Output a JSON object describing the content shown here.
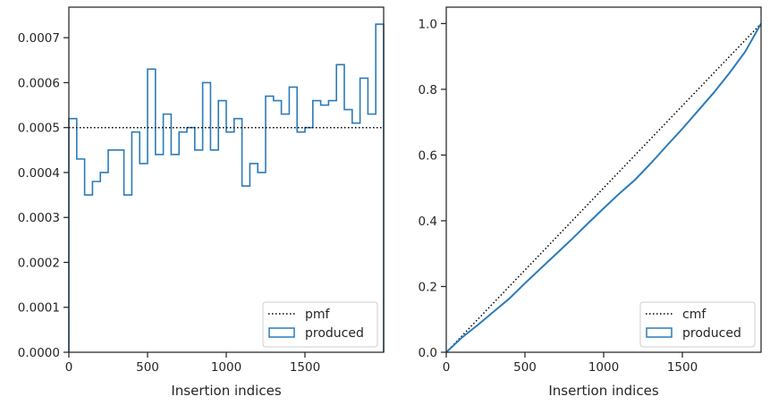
{
  "chart_data": [
    {
      "type": "histogram-step",
      "xlabel": "Insertion indices",
      "ylabel": "",
      "xlim": [
        0,
        2000
      ],
      "ylim": [
        0,
        0.000768
      ],
      "xticks": [
        0,
        500,
        1000,
        1500
      ],
      "xtick_labels": [
        "0",
        "500",
        "1000",
        "1500"
      ],
      "yticks": [
        0,
        0.0001,
        0.0002,
        0.0003,
        0.0004,
        0.0005,
        0.0006,
        0.0007
      ],
      "ytick_labels": [
        "0.0000",
        "0.0001",
        "0.0002",
        "0.0003",
        "0.0004",
        "0.0005",
        "0.0006",
        "0.0007"
      ],
      "bin_width": 50,
      "bin_edges_start": 0,
      "series": [
        {
          "name": "produced",
          "style": "step",
          "color": "#2b7bba",
          "values": [
            0.00052,
            0.00043,
            0.00035,
            0.00038,
            0.0004,
            0.00045,
            0.00045,
            0.00035,
            0.00049,
            0.00042,
            0.00063,
            0.00044,
            0.00053,
            0.00044,
            0.00049,
            0.0005,
            0.00045,
            0.0006,
            0.00045,
            0.00056,
            0.00049,
            0.00052,
            0.00037,
            0.00042,
            0.0004,
            0.00057,
            0.00056,
            0.00053,
            0.00059,
            0.00049,
            0.0005,
            0.00056,
            0.00055,
            0.00056,
            0.00064,
            0.00054,
            0.00051,
            0.00061,
            0.00053,
            0.00073
          ]
        },
        {
          "name": "pmf",
          "style": "dotted",
          "color": "#000000",
          "y": 0.0005
        }
      ],
      "legend": {
        "placement": "lower right",
        "entries": [
          {
            "label": "pmf",
            "style": "dotted"
          },
          {
            "label": "produced",
            "style": "patch"
          }
        ]
      }
    },
    {
      "type": "line",
      "xlabel": "Insertion indices",
      "ylabel": "",
      "xlim": [
        0,
        2000
      ],
      "ylim": [
        0,
        1.05
      ],
      "xticks": [
        0,
        500,
        1000,
        1500
      ],
      "xtick_labels": [
        "0",
        "500",
        "1000",
        "1500"
      ],
      "yticks": [
        0,
        0.2,
        0.4,
        0.6,
        0.8,
        1.0
      ],
      "ytick_labels": [
        "0.0",
        "0.2",
        "0.4",
        "0.6",
        "0.8",
        "1.0"
      ],
      "series": [
        {
          "name": "cmf",
          "style": "dotted",
          "color": "#000000",
          "x": [
            0,
            2000
          ],
          "y": [
            0,
            1.0
          ]
        },
        {
          "name": "produced",
          "style": "line",
          "color": "#2b7bba",
          "x": [
            0,
            100,
            200,
            300,
            400,
            500,
            600,
            700,
            800,
            900,
            1000,
            1100,
            1200,
            1300,
            1400,
            1500,
            1600,
            1700,
            1800,
            1900,
            2000
          ],
          "y": [
            0,
            0.045,
            0.083,
            0.123,
            0.163,
            0.21,
            0.255,
            0.3,
            0.345,
            0.392,
            0.438,
            0.483,
            0.525,
            0.575,
            0.628,
            0.68,
            0.735,
            0.79,
            0.85,
            0.915,
            1.0
          ]
        }
      ],
      "legend": {
        "placement": "lower right",
        "entries": [
          {
            "label": "cmf",
            "style": "dotted"
          },
          {
            "label": "produced",
            "style": "patch"
          }
        ]
      }
    }
  ]
}
